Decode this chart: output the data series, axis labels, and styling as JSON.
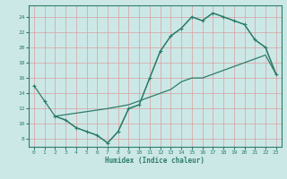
{
  "line1_x": [
    0,
    1,
    2,
    3,
    4,
    5,
    6,
    7,
    8,
    9,
    10,
    11,
    12,
    13,
    14,
    15,
    16,
    17,
    18,
    19,
    20,
    21,
    22,
    23
  ],
  "line1_y": [
    15,
    13,
    11,
    10.5,
    9.5,
    9,
    8.5,
    7.5,
    9,
    12,
    12.5,
    16,
    19.5,
    21.5,
    22.5,
    24,
    23.5,
    24.5,
    24,
    23.5,
    23,
    21,
    20,
    16.5
  ],
  "line2_x": [
    2,
    7,
    9,
    10,
    11,
    12,
    13,
    14,
    15,
    16,
    17,
    18,
    19,
    20,
    21,
    22,
    23
  ],
  "line2_y": [
    11,
    12,
    12.5,
    13.0,
    13.5,
    14.0,
    14.5,
    15.5,
    16.0,
    16.0,
    16.5,
    17.0,
    17.5,
    18.0,
    18.5,
    19.0,
    16.5
  ],
  "line3_x": [
    2,
    3,
    4,
    5,
    6,
    7,
    8,
    9,
    10,
    11,
    12,
    13,
    14,
    15,
    16,
    17,
    18,
    19,
    20,
    21,
    22,
    23
  ],
  "line3_y": [
    11,
    10.5,
    9.5,
    9.0,
    8.5,
    7.5,
    9.0,
    12.0,
    12.5,
    16.0,
    19.5,
    21.5,
    22.5,
    24.0,
    23.5,
    24.5,
    24.0,
    23.5,
    23.0,
    21.0,
    20.0,
    16.5
  ],
  "line_color": "#2d7d6b",
  "bg_color": "#cce8e6",
  "grid_color": "#b0d4d2",
  "xlabel": "Humidex (Indice chaleur)",
  "ylim": [
    7,
    25.5
  ],
  "xlim": [
    -0.5,
    23.5
  ],
  "yticks": [
    8,
    10,
    12,
    14,
    16,
    18,
    20,
    22,
    24
  ],
  "xticks": [
    0,
    1,
    2,
    3,
    4,
    5,
    6,
    7,
    8,
    9,
    10,
    11,
    12,
    13,
    14,
    15,
    16,
    17,
    18,
    19,
    20,
    21,
    22,
    23
  ]
}
